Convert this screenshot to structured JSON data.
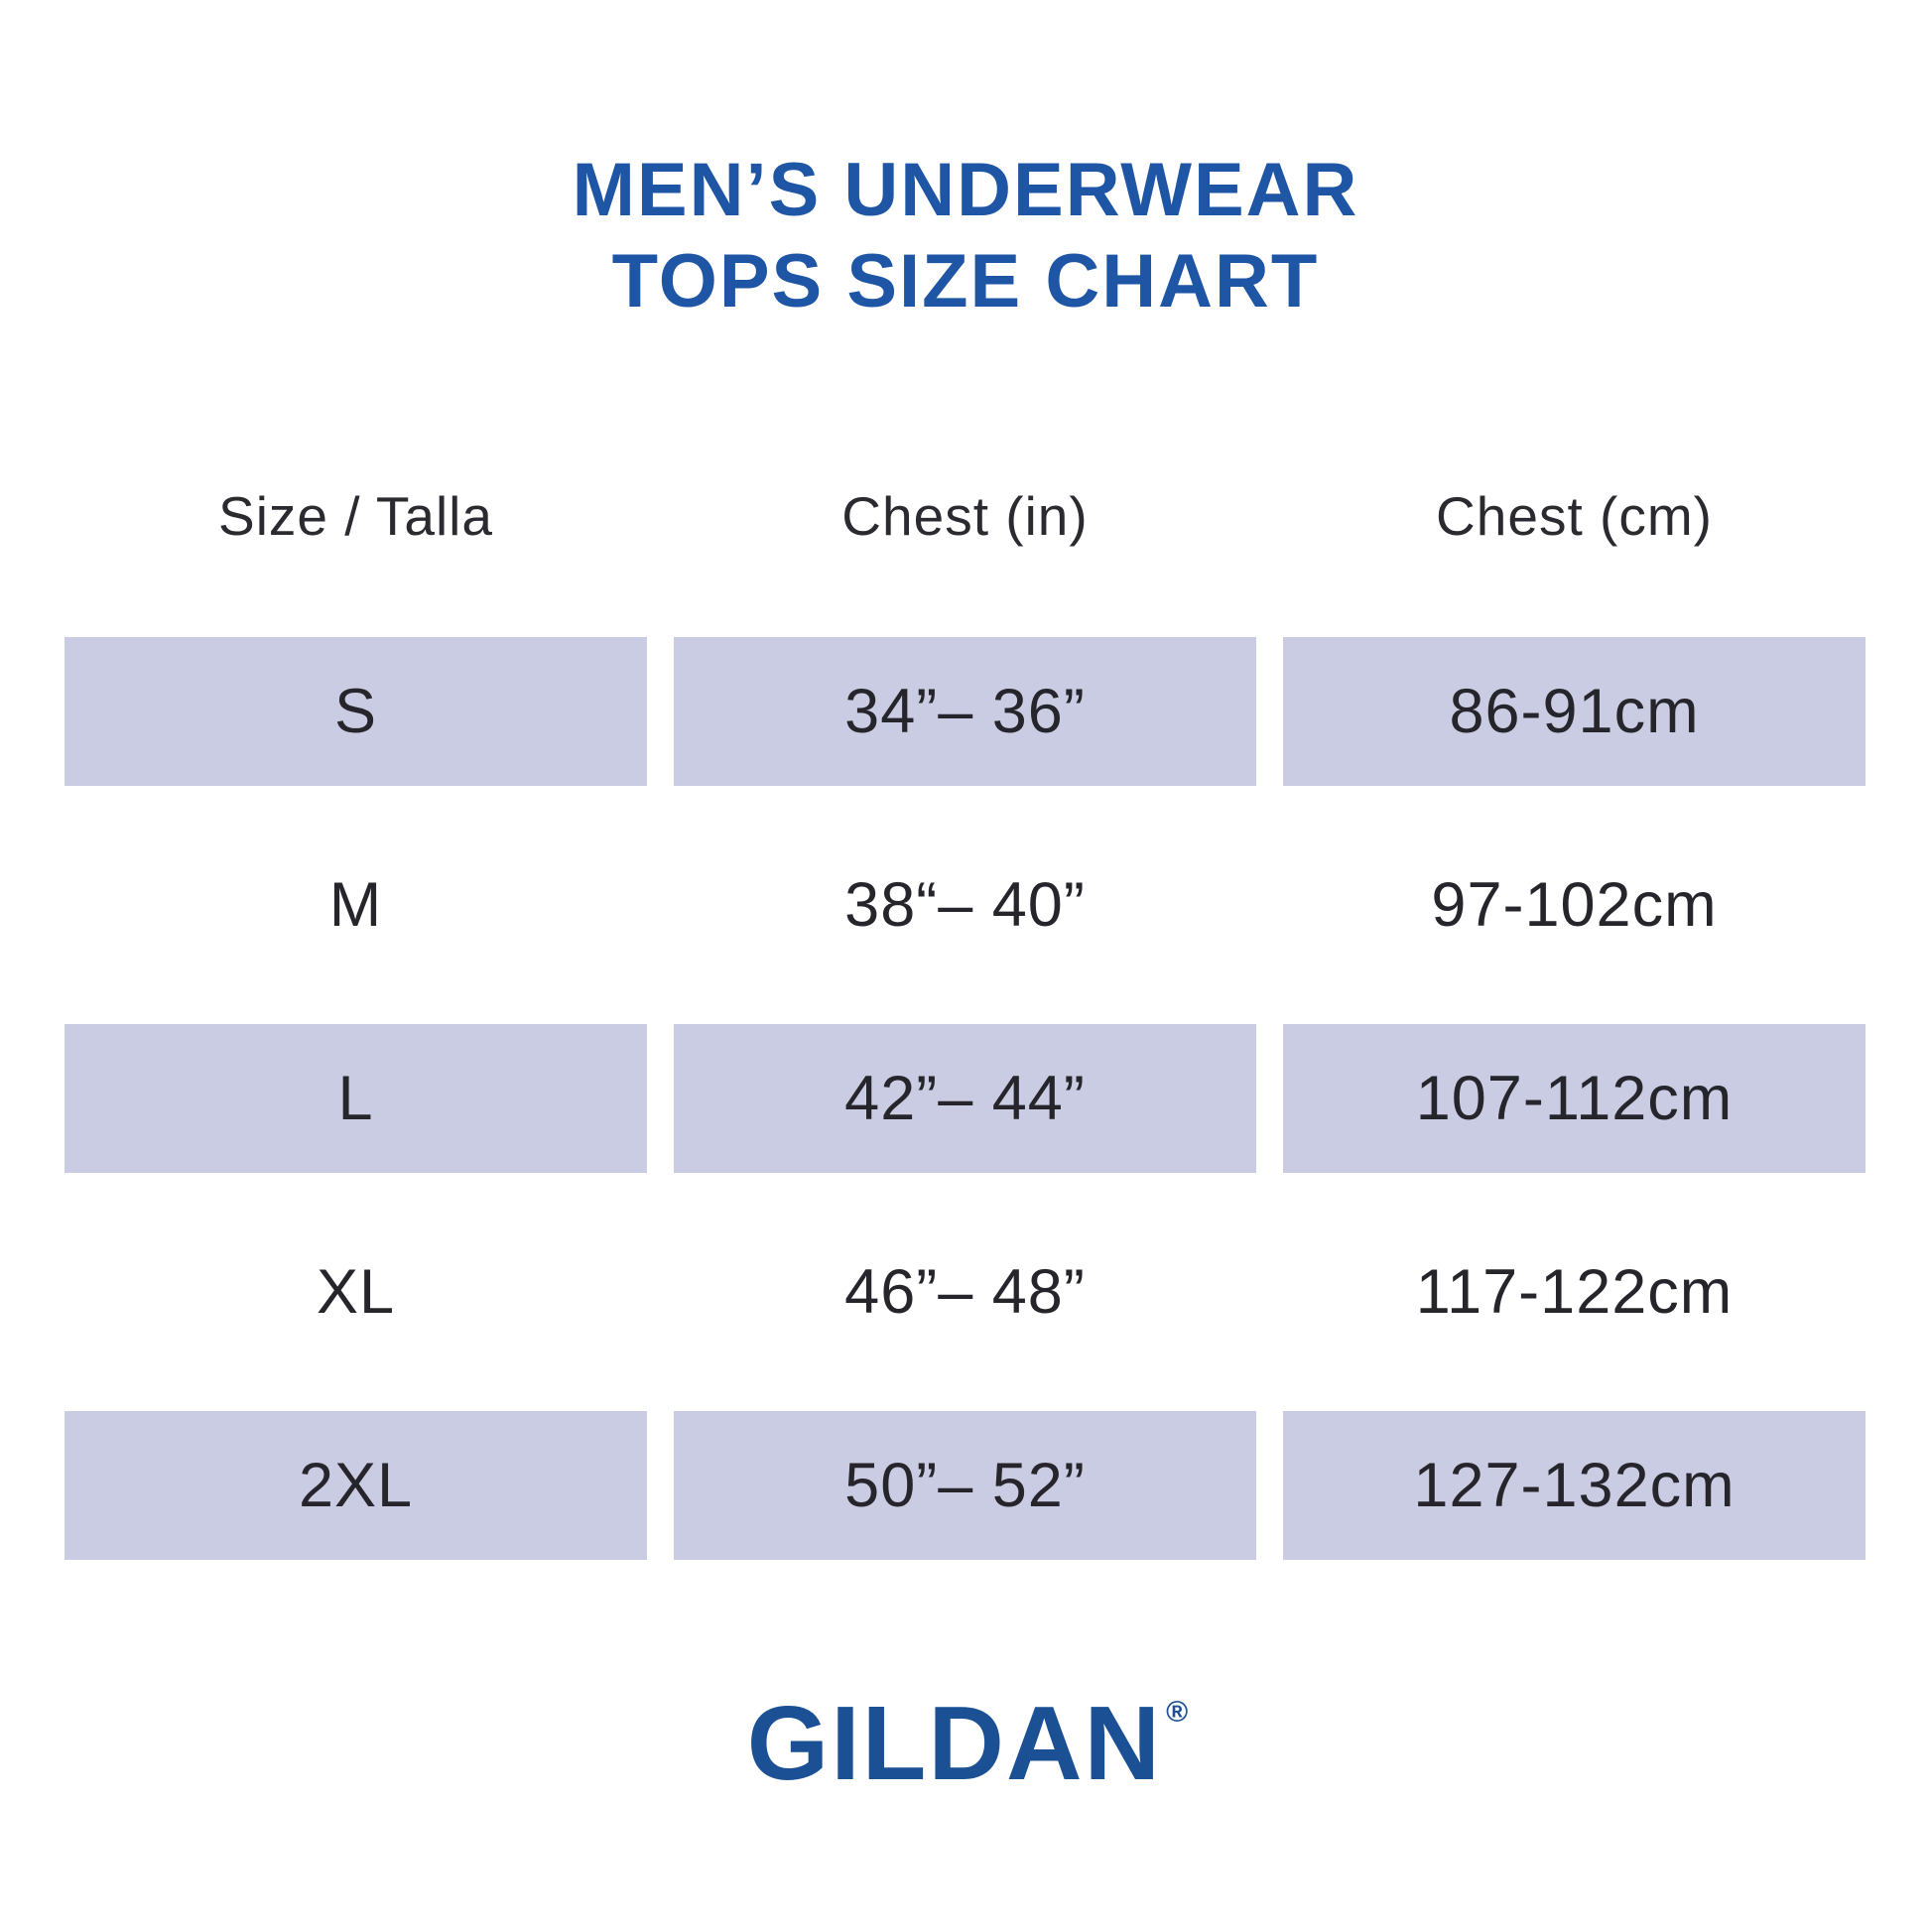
{
  "title": {
    "line1": "MEN’S UNDERWEAR",
    "line2": "TOPS SIZE CHART"
  },
  "chart_data": {
    "type": "table",
    "title": "MEN’S UNDERWEAR TOPS SIZE CHART",
    "columns": [
      "Size / Talla",
      "Chest (in)",
      "Chest (cm)"
    ],
    "rows": [
      [
        "S",
        "34”– 36”",
        "86-91cm"
      ],
      [
        "M",
        "38“– 40”",
        "97-102cm"
      ],
      [
        "L",
        "42”– 44”",
        "107-112cm"
      ],
      [
        "XL",
        "46”– 48”",
        "117-122cm"
      ],
      [
        "2XL",
        "50”– 52”",
        "127-132cm"
      ]
    ],
    "shaded_rows": [
      0,
      2,
      4
    ],
    "layout_hints": {
      "row_shading": "alternating, first row shaded",
      "alignment": "all cells centered",
      "grid": "off"
    }
  },
  "logo": {
    "text": "GILDAN",
    "registered": "®"
  },
  "colors": {
    "title_blue": "#1e55a4",
    "logo_blue": "#1b5094",
    "row_shade_lavender": "#c9cce3",
    "body_text": "#26252b",
    "background": "#ffffff"
  }
}
